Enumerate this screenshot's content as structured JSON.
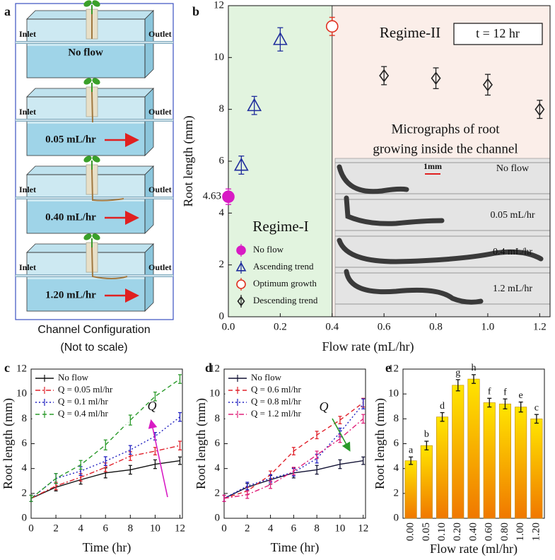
{
  "panel_a": {
    "label": "a",
    "boxes": [
      {
        "inlet": "Inlet",
        "outlet": "Outlet",
        "flow": "No flow"
      },
      {
        "inlet": "Inlet",
        "outlet": "Outlet",
        "flow": "0.05 mL/hr"
      },
      {
        "inlet": "Inlet",
        "outlet": "Outlet",
        "flow": "0.40 mL/hr"
      },
      {
        "inlet": "Inlet",
        "outlet": "Outlet",
        "flow": "1.20 mL/hr"
      }
    ],
    "caption": [
      "Channel Configuration",
      "(Not to scale)"
    ]
  },
  "chart_data": [
    {
      "type": "scatter",
      "panel": "b",
      "x_label": "Flow rate (mL/hr)",
      "y_label": "Root length (mm)",
      "xlim": [
        0,
        1.24
      ],
      "ylim": [
        0,
        12
      ],
      "xticks": [
        {
          "value": 0,
          "label": "0.0"
        },
        0.2,
        0.4,
        0.6,
        0.8,
        {
          "value": 1,
          "label": "1.0"
        },
        1.2
      ],
      "yticks": [
        0,
        2,
        4,
        6,
        8,
        10,
        12
      ],
      "highlight_ytick": 4.63,
      "regions": [
        {
          "label": "Regime-I",
          "from": 0,
          "color": "#e2f4df",
          "label_color": "#e02020"
        },
        {
          "label": "Regime-II",
          "from": 0.4,
          "color": "#fbeee9",
          "label_color": "#e02020"
        }
      ],
      "annotation": "t = 12 hr",
      "inset_title": [
        "Micrographs of root",
        "growing inside the channel"
      ],
      "inset_labels": [
        "No flow",
        "0.05 mL/hr",
        "0.4 mL/hr",
        "1.2 mL/hr"
      ],
      "scale_bar": "1mm",
      "legend": "lower left",
      "series": [
        {
          "name": "No flow",
          "color": "#d81bc4",
          "marker": "circle",
          "filled": true,
          "x": [
            0
          ],
          "values": [
            4.63
          ],
          "errors": [
            0.3
          ]
        },
        {
          "name": "Ascending trend",
          "color": "#1f2d9c",
          "marker": "triangle",
          "filled": false,
          "x": [
            0.05,
            0.1,
            0.2
          ],
          "values": [
            5.85,
            8.15,
            10.7
          ],
          "errors": [
            0.35,
            0.35,
            0.45
          ]
        },
        {
          "name": "Optimum growth",
          "color": "#e03020",
          "marker": "circle",
          "filled": false,
          "x": [
            0.4
          ],
          "values": [
            11.2
          ],
          "errors": [
            0.35
          ]
        },
        {
          "name": "Descending trend",
          "color": "#222222",
          "marker": "diamond",
          "filled": false,
          "x": [
            0.6,
            0.8,
            1.0,
            1.2
          ],
          "values": [
            9.3,
            9.2,
            8.95,
            8.0
          ],
          "errors": [
            0.35,
            0.4,
            0.4,
            0.35
          ]
        }
      ]
    },
    {
      "type": "line",
      "panel": "c",
      "x_label": "Time (hr)",
      "y_label": "Root length (mm)",
      "xlim": [
        0,
        12.2
      ],
      "ylim": [
        0,
        12
      ],
      "xticks": [
        0,
        2,
        4,
        6,
        8,
        10,
        12
      ],
      "yticks": [
        0,
        2,
        4,
        6,
        8,
        10,
        12
      ],
      "legend": "upper left",
      "annotation": {
        "text": "Q",
        "color": "#d81bc4"
      },
      "x": [
        0,
        2,
        4,
        6,
        8,
        10,
        12
      ],
      "series": [
        {
          "name": "No flow",
          "color": "#111111",
          "linestyle": "solid",
          "values": [
            1.6,
            2.5,
            3.1,
            3.65,
            3.9,
            4.35,
            4.63
          ],
          "errors": [
            0.25,
            0.3,
            0.35,
            0.4,
            0.35,
            0.35,
            0.3
          ]
        },
        {
          "name": "Q = 0.05 ml/hr",
          "color": "#e0202a",
          "linestyle": "dashdot",
          "values": [
            1.6,
            2.6,
            3.3,
            4.1,
            5.0,
            5.4,
            5.85
          ],
          "errors": [
            0.25,
            0.3,
            0.3,
            0.35,
            0.35,
            0.3,
            0.35
          ]
        },
        {
          "name": "Q = 0.1 ml/hr",
          "color": "#2020c0",
          "linestyle": "dotted",
          "values": [
            1.6,
            3.2,
            3.8,
            4.6,
            5.5,
            6.6,
            8.15
          ],
          "errors": [
            0.25,
            0.4,
            0.35,
            0.35,
            0.35,
            0.3,
            0.35
          ]
        },
        {
          "name": "Q = 0.4 ml/hr",
          "color": "#2a9a2a",
          "linestyle": "dashed",
          "values": [
            1.6,
            3.2,
            4.3,
            5.9,
            7.9,
            9.8,
            11.2
          ],
          "errors": [
            0.25,
            0.4,
            0.35,
            0.4,
            0.4,
            0.35,
            0.35
          ]
        }
      ]
    },
    {
      "type": "line",
      "panel": "d",
      "x_label": "Time (hr)",
      "y_label": "Root length (mm)",
      "xlim": [
        0,
        12.2
      ],
      "ylim": [
        0,
        12
      ],
      "xticks": [
        0,
        2,
        4,
        6,
        8,
        10,
        12
      ],
      "yticks": [
        0,
        2,
        4,
        6,
        8,
        10,
        12
      ],
      "legend": "upper left",
      "annotation": {
        "text": "Q",
        "color": "#2a9a2a"
      },
      "x": [
        0,
        2,
        4,
        6,
        8,
        10,
        12
      ],
      "series": [
        {
          "name": "No flow",
          "color": "#111133",
          "linestyle": "solid",
          "values": [
            1.6,
            2.5,
            3.1,
            3.65,
            3.9,
            4.35,
            4.63
          ],
          "errors": [
            0.25,
            0.3,
            0.35,
            0.4,
            0.35,
            0.35,
            0.3
          ]
        },
        {
          "name": "Q = 0.6 ml/hr",
          "color": "#e0202a",
          "linestyle": "dashed",
          "values": [
            1.6,
            2.2,
            3.5,
            5.4,
            6.7,
            7.9,
            9.3
          ],
          "errors": [
            0.25,
            0.3,
            0.3,
            0.3,
            0.3,
            0.3,
            0.35
          ]
        },
        {
          "name": "Q = 0.8 ml/hr",
          "color": "#2020c0",
          "linestyle": "dotted",
          "values": [
            1.6,
            2.6,
            3.2,
            3.7,
            4.8,
            6.9,
            9.2
          ],
          "errors": [
            0.25,
            0.3,
            0.3,
            0.3,
            0.35,
            0.35,
            0.4
          ]
        },
        {
          "name": "Q = 1.2 ml/hr",
          "color": "#e0207a",
          "linestyle": "dashdot",
          "values": [
            1.6,
            1.9,
            2.7,
            3.8,
            5.1,
            6.4,
            8.0
          ],
          "errors": [
            0.25,
            0.3,
            0.3,
            0.3,
            0.3,
            0.3,
            0.35
          ]
        }
      ]
    },
    {
      "type": "bar",
      "panel": "e",
      "x_label": "Flow rate (ml/hr)",
      "y_label": "Root length (mm)",
      "ylim": [
        0,
        12
      ],
      "yticks": [
        0,
        2,
        4,
        6,
        8,
        10,
        12
      ],
      "color": "#f7c600",
      "categories": [
        "0.00",
        "0.05",
        "0.10",
        "0.20",
        "0.40",
        "0.60",
        "0.80",
        "1.00",
        "1.20"
      ],
      "values": [
        4.63,
        5.85,
        8.15,
        10.7,
        11.2,
        9.3,
        9.2,
        8.95,
        8.0
      ],
      "errors": [
        0.3,
        0.35,
        0.35,
        0.45,
        0.35,
        0.35,
        0.4,
        0.4,
        0.35
      ],
      "annotations": [
        "a",
        "b",
        "d",
        "g",
        "h",
        "f",
        "f",
        "e",
        "c"
      ]
    }
  ]
}
